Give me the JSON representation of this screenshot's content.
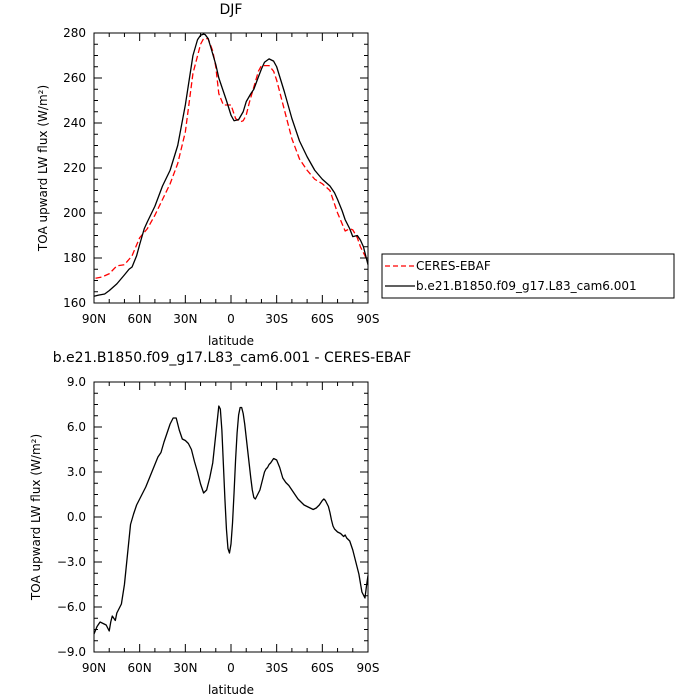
{
  "chart_data": [
    {
      "type": "line",
      "title": "DJF",
      "xlabel": "latitude",
      "ylabel": "TOA upward LW flux (W/m²)",
      "xlim": [
        90,
        -90
      ],
      "ylim": [
        160,
        280
      ],
      "xticks": [
        90,
        60,
        30,
        0,
        -30,
        -60,
        -90
      ],
      "xtick_labels": [
        "90N",
        "60N",
        "30N",
        "0",
        "30S",
        "60S",
        "90S"
      ],
      "yticks": [
        160,
        180,
        200,
        220,
        240,
        260,
        280
      ],
      "ytick_labels": [
        "160",
        "180",
        "200",
        "220",
        "240",
        "260",
        "280"
      ],
      "legend_position": "right",
      "series": [
        {
          "name": "CERES-EBAF",
          "color": "#ff0000",
          "dash": "dashed",
          "x": [
            89,
            85,
            80,
            75,
            70,
            65,
            60,
            55,
            50,
            45,
            40,
            35,
            30,
            25,
            20,
            18,
            15,
            12,
            10,
            8,
            5,
            2,
            0,
            -3,
            -6,
            -8,
            -10,
            -12,
            -15,
            -18,
            -20,
            -25,
            -28,
            -30,
            -35,
            -40,
            -45,
            -50,
            -55,
            -60,
            -65,
            -70,
            -75,
            -78,
            -80,
            -83,
            -85,
            -88,
            -90
          ],
          "y": [
            171,
            171.5,
            173,
            176.5,
            177,
            181,
            189,
            193,
            199,
            206,
            213,
            222,
            236,
            262,
            275,
            277.5,
            277.5,
            272,
            265,
            253,
            248,
            248,
            248,
            242,
            240.5,
            241,
            243.5,
            249,
            256,
            263,
            265.5,
            265.5,
            263,
            259,
            246,
            233,
            224,
            219,
            215,
            213,
            210,
            200,
            192,
            193,
            192.5,
            189,
            185,
            181,
            178
          ]
        },
        {
          "name": "b.e21.B1850.f09_g17.L83_cam6.001",
          "color": "#000000",
          "dash": "solid",
          "x": [
            90,
            87,
            83,
            80,
            75,
            70,
            67,
            65,
            62,
            60,
            57,
            55,
            50,
            45,
            40,
            35,
            30,
            25,
            22,
            20,
            18,
            17,
            15,
            13,
            10,
            8,
            5,
            3,
            0,
            -2,
            -5,
            -8,
            -10,
            -13,
            -15,
            -18,
            -20,
            -22,
            -25,
            -28,
            -30,
            -35,
            -40,
            -45,
            -50,
            -55,
            -60,
            -65,
            -68,
            -70,
            -73,
            -75,
            -78,
            -80,
            -83,
            -85,
            -87,
            -90
          ],
          "y": [
            163,
            163.5,
            164,
            165.5,
            168.5,
            172.5,
            175,
            176,
            181,
            186,
            193,
            196,
            203,
            212,
            219,
            230,
            248,
            270,
            277,
            279,
            279.5,
            279.3,
            277.5,
            273,
            266,
            260,
            254,
            250,
            243.5,
            241,
            241.5,
            245,
            249.5,
            253,
            255,
            260.5,
            264,
            267,
            268.5,
            267.5,
            265,
            254,
            242,
            232,
            225,
            219,
            215,
            212,
            209,
            206,
            201,
            197,
            193,
            189.5,
            190,
            188,
            185,
            177
          ]
        }
      ]
    },
    {
      "type": "line",
      "title": "b.e21.B1850.f09_g17.L83_cam6.001 - CERES-EBAF",
      "xlabel": "latitude",
      "ylabel": "TOA upward LW flux (W/m²)",
      "xlim": [
        90,
        -90
      ],
      "ylim": [
        -9,
        9
      ],
      "xticks": [
        90,
        60,
        30,
        0,
        -30,
        -60,
        -90
      ],
      "xtick_labels": [
        "90N",
        "60N",
        "30N",
        "0",
        "30S",
        "60S",
        "90S"
      ],
      "yticks": [
        -9,
        -6,
        -3,
        0,
        3,
        6,
        9
      ],
      "ytick_labels": [
        "−9.0",
        "−6.0",
        "−3.0",
        "0.0",
        "3.0",
        "6.0",
        "9.0"
      ],
      "series": [
        {
          "color": "#000000",
          "dash": "solid",
          "x": [
            90,
            88,
            86,
            84,
            82,
            80,
            79,
            78,
            76,
            75,
            74,
            72,
            70,
            68,
            66,
            64,
            62,
            60,
            58,
            56,
            54,
            52,
            50,
            48,
            46,
            44,
            42,
            40,
            38,
            36,
            35,
            34,
            32,
            30,
            28,
            26,
            24,
            22,
            20,
            18,
            16,
            14,
            12,
            10,
            8,
            7,
            6,
            5,
            4,
            3,
            2,
            1,
            0,
            -1,
            -2,
            -3,
            -4,
            -5,
            -6,
            -7,
            -8,
            -9,
            -10,
            -11,
            -12,
            -13,
            -14,
            -15,
            -16,
            -17,
            -18,
            -19,
            -20,
            -21,
            -22,
            -23,
            -24,
            -25,
            -26,
            -28,
            -30,
            -32,
            -34,
            -36,
            -38,
            -40,
            -42,
            -44,
            -46,
            -48,
            -50,
            -52,
            -54,
            -56,
            -58,
            -60,
            -61,
            -62,
            -63,
            -64,
            -65,
            -66,
            -67,
            -68,
            -69,
            -70,
            -72,
            -74,
            -75,
            -76,
            -78,
            -80,
            -82,
            -84,
            -86,
            -88,
            -89,
            -90
          ],
          "y": [
            -7.8,
            -7.3,
            -7.0,
            -7.1,
            -7.2,
            -7.6,
            -7.0,
            -6.6,
            -6.9,
            -6.4,
            -6.2,
            -5.8,
            -4.5,
            -2.5,
            -0.5,
            0.2,
            0.8,
            1.2,
            1.6,
            2.0,
            2.5,
            3.0,
            3.5,
            4.0,
            4.3,
            5.0,
            5.6,
            6.2,
            6.6,
            6.6,
            6.2,
            5.8,
            5.2,
            5.1,
            4.9,
            4.5,
            3.7,
            3.0,
            2.2,
            1.6,
            1.8,
            2.6,
            3.6,
            5.5,
            7.4,
            7.2,
            5.8,
            3.5,
            1.2,
            -0.8,
            -2.1,
            -2.4,
            -1.8,
            -0.4,
            1.6,
            3.8,
            5.6,
            6.8,
            7.3,
            7.3,
            6.9,
            6.2,
            5.3,
            4.4,
            3.5,
            2.6,
            1.8,
            1.3,
            1.2,
            1.4,
            1.6,
            1.8,
            2.2,
            2.6,
            3.0,
            3.2,
            3.3,
            3.5,
            3.6,
            3.9,
            3.8,
            3.3,
            2.6,
            2.3,
            2.1,
            1.8,
            1.5,
            1.2,
            1.0,
            0.8,
            0.7,
            0.6,
            0.5,
            0.6,
            0.8,
            1.1,
            1.2,
            1.1,
            0.9,
            0.7,
            0.3,
            -0.2,
            -0.6,
            -0.8,
            -0.9,
            -1.0,
            -1.1,
            -1.3,
            -1.2,
            -1.4,
            -1.6,
            -2.2,
            -3.0,
            -3.8,
            -5.0,
            -5.4,
            -4.6,
            -3.9
          ]
        }
      ]
    }
  ]
}
